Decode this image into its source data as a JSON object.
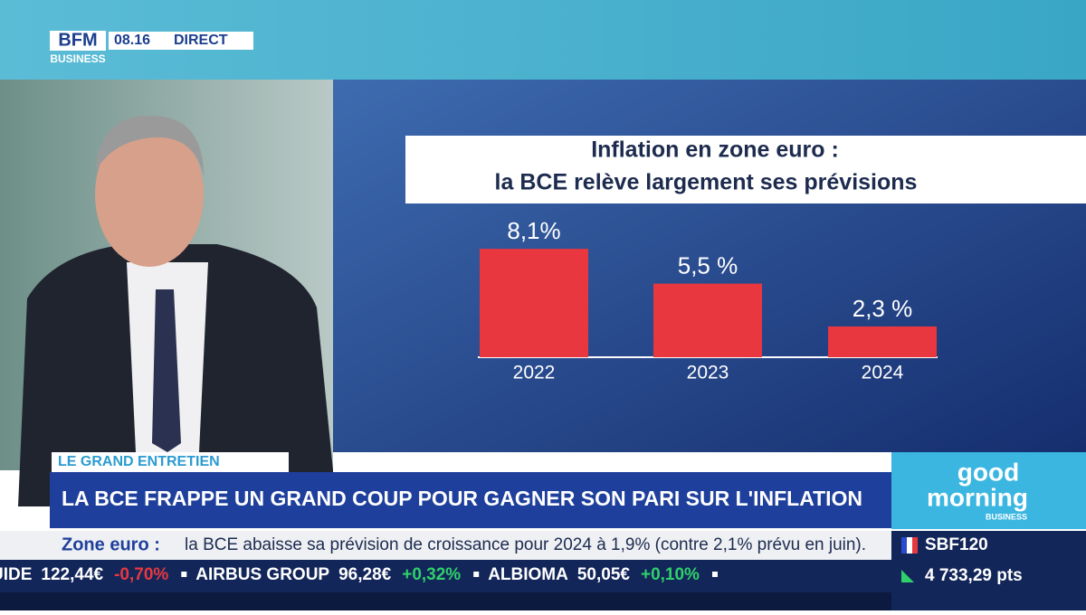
{
  "header": {
    "logo": "BFM",
    "logo_sub": "BUSINESS",
    "time": "08.16",
    "live": "DIRECT"
  },
  "chart_data": {
    "type": "bar",
    "title": "Inflation en zone euro :",
    "subtitle": "la BCE relève largement ses prévisions",
    "categories": [
      "2022",
      "2023",
      "2024"
    ],
    "values": [
      8.1,
      5.5,
      2.3
    ],
    "value_labels": [
      "8,1%",
      "5,5 %",
      "2,3 %"
    ],
    "color": "#e8373f"
  },
  "lower_third": {
    "tag": "LE GRAND ENTRETIEN",
    "headline": "LA BCE FRAPPE UN GRAND COUP POUR GAGNER SON PARI SUR L'INFLATION"
  },
  "news_ticker": {
    "topic": "Zone euro :",
    "text": "la BCE abaisse sa prévision de croissance pour 2024 à 1,9% (contre 2,1% prévu en juin)."
  },
  "stock_ticker": [
    {
      "name": "UIDE",
      "price": "122,44€",
      "change": "-0,70%"
    },
    {
      "name": "AIRBUS GROUP",
      "price": "96,28€",
      "change": "+0,32%"
    },
    {
      "name": "ALBIOMA",
      "price": "50,05€",
      "change": "+0,10%"
    }
  ],
  "show_logo": {
    "line1": "good",
    "line2": "morning",
    "line3": "BUSINESS"
  },
  "index": {
    "name": "SBF120",
    "value": "4 733,29 pts"
  }
}
